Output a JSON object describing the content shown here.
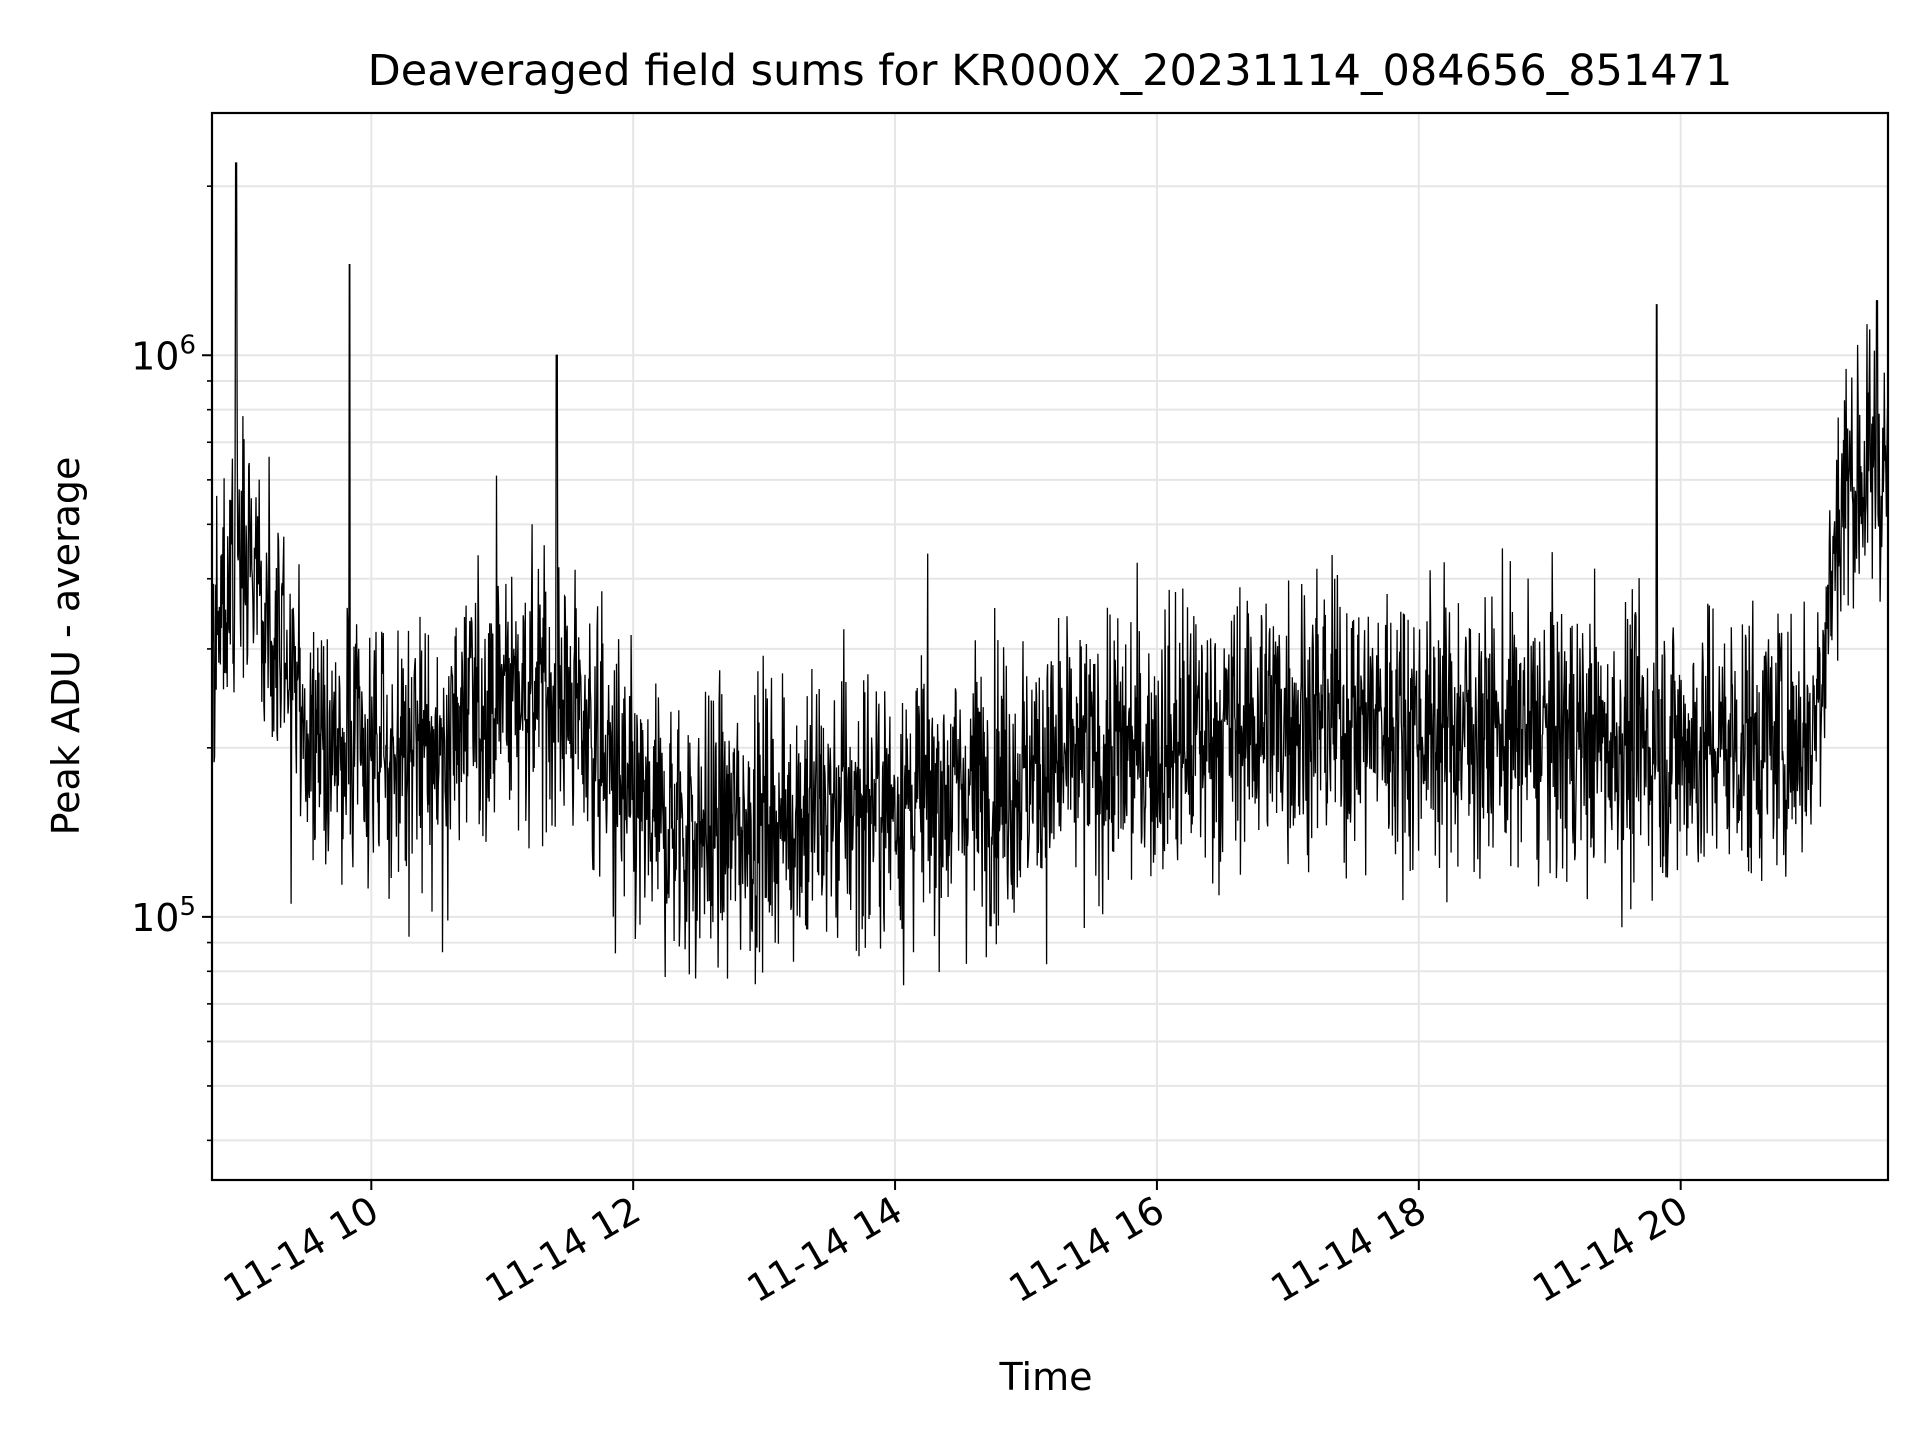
{
  "chart_data": {
    "type": "line",
    "title": "Deaveraged field sums for KR000X_20231114_084656_851471",
    "xlabel": "Time",
    "ylabel": "Peak ADU - average",
    "x_axis": {
      "kind": "datetime",
      "range": [
        "2023-11-14 08:47",
        "2023-11-14 21:35"
      ],
      "ticks": [
        {
          "value": "2023-11-14 10:00",
          "label": "11-14 10"
        },
        {
          "value": "2023-11-14 12:00",
          "label": "11-14 12"
        },
        {
          "value": "2023-11-14 14:00",
          "label": "11-14 14"
        },
        {
          "value": "2023-11-14 16:00",
          "label": "11-14 16"
        },
        {
          "value": "2023-11-14 18:00",
          "label": "11-14 18"
        },
        {
          "value": "2023-11-14 20:00",
          "label": "11-14 20"
        }
      ],
      "tick_rotation_deg": 30
    },
    "y_axis": {
      "scale": "log",
      "range": [
        34000,
        2700000
      ],
      "ticks": [
        {
          "value": 100000,
          "base": "10",
          "exp": "5"
        },
        {
          "value": 1000000,
          "base": "10",
          "exp": "6"
        }
      ]
    },
    "grid": true,
    "legend": "none",
    "line_color": "#000000",
    "series": [
      {
        "values_note": "approximate envelope of a dense noisy trace (typical level in data units)",
        "x": [
          "2023-11-14 08:47",
          "2023-11-14 09:00",
          "2023-11-14 09:15",
          "2023-11-14 09:30",
          "2023-11-14 10:00",
          "2023-11-14 10:30",
          "2023-11-14 11:00",
          "2023-11-14 11:30",
          "2023-11-14 12:00",
          "2023-11-14 12:30",
          "2023-11-14 13:00",
          "2023-11-14 14:00",
          "2023-11-14 15:00",
          "2023-11-14 16:00",
          "2023-11-14 17:00",
          "2023-11-14 18:00",
          "2023-11-14 19:00",
          "2023-11-14 20:00",
          "2023-11-14 21:00",
          "2023-11-14 21:15",
          "2023-11-14 21:35"
        ],
        "values": [
          300000,
          450000,
          320000,
          200000,
          190000,
          200000,
          260000,
          250000,
          150000,
          140000,
          150000,
          160000,
          180000,
          200000,
          230000,
          220000,
          210000,
          200000,
          210000,
          600000,
          620000
        ]
      }
    ],
    "notable_peaks": [
      {
        "x": "2023-11-14 08:58",
        "y": 2200000
      },
      {
        "x": "2023-11-14 09:50",
        "y": 1450000
      },
      {
        "x": "2023-11-14 11:25",
        "y": 1000000
      },
      {
        "x": "2023-11-14 19:49",
        "y": 1230000
      },
      {
        "x": "2023-11-14 21:30",
        "y": 1250000
      }
    ]
  }
}
